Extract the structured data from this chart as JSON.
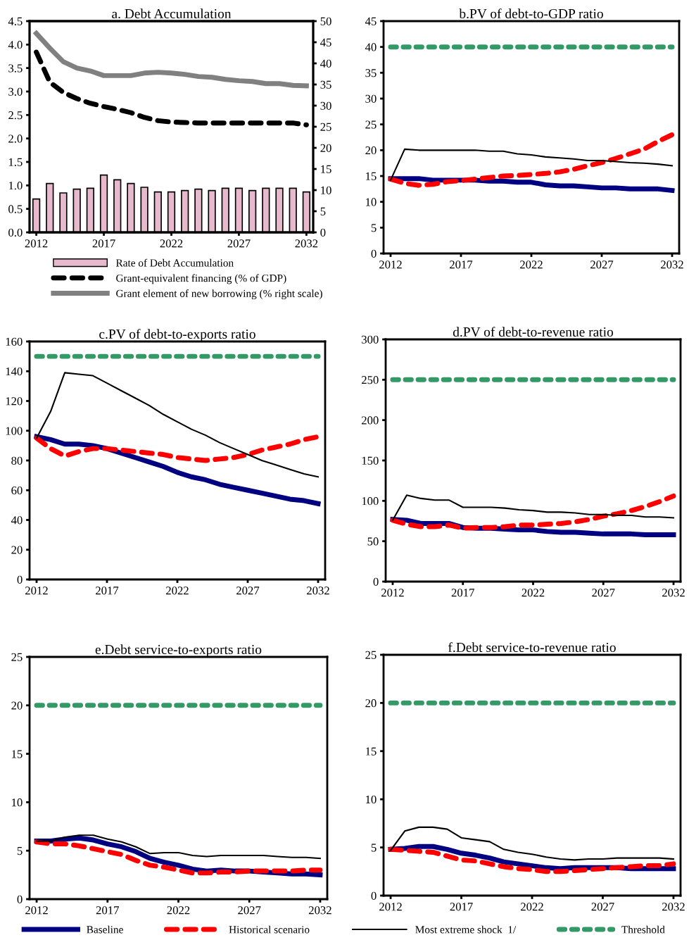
{
  "chart_data": [
    {
      "type": "bar",
      "title": "a. Debt Accumulation",
      "x": [
        2012,
        2013,
        2014,
        2015,
        2016,
        2017,
        2018,
        2019,
        2020,
        2021,
        2022,
        2023,
        2024,
        2025,
        2026,
        2027,
        2028,
        2029,
        2030,
        2031,
        2032
      ],
      "xlim": [
        2011.5,
        2032.5
      ],
      "xticks": [
        2012,
        2017,
        2022,
        2027,
        2032
      ],
      "ylim": [
        0,
        4.5
      ],
      "yticks": [
        {
          "value": 0,
          "label": "0.0"
        },
        {
          "value": 0.5,
          "label": "0.5"
        },
        {
          "value": 1,
          "label": "1.0"
        },
        {
          "value": 1.5,
          "label": "1.5"
        },
        {
          "value": 2,
          "label": "2.0"
        },
        {
          "value": 2.5,
          "label": "2.5"
        },
        {
          "value": 3,
          "label": "3.0"
        },
        {
          "value": 3.5,
          "label": "3.5"
        },
        {
          "value": 4,
          "label": "4.0"
        },
        {
          "value": 4.5,
          "label": "4.5"
        }
      ],
      "y2lim": [
        0,
        50
      ],
      "y2ticks": [
        0,
        5,
        10,
        15,
        20,
        25,
        30,
        35,
        40,
        45,
        50
      ],
      "legend": "bottom",
      "series": [
        {
          "name": "Rate of Debt Accumulation",
          "type": "bar",
          "color": "#e7b9cc",
          "values": [
            0.71,
            1.04,
            0.84,
            0.92,
            0.94,
            1.22,
            1.12,
            1.04,
            0.96,
            0.86,
            0.86,
            0.89,
            0.92,
            0.89,
            0.94,
            0.94,
            0.89,
            0.94,
            0.94,
            0.94,
            0.86
          ]
        },
        {
          "name": "Grant-equivalent financing (% of GDP)",
          "type": "line",
          "line_style": "dashed",
          "color": "#000000",
          "values": [
            3.84,
            3.2,
            2.98,
            2.85,
            2.75,
            2.68,
            2.62,
            2.55,
            2.45,
            2.38,
            2.35,
            2.34,
            2.33,
            2.33,
            2.33,
            2.33,
            2.33,
            2.33,
            2.33,
            2.33,
            2.29
          ]
        },
        {
          "name": "Grant element of new borrowing (% right scale)",
          "type": "line",
          "axis": "y2",
          "color": "#808080",
          "values": [
            47.1,
            43.6,
            40.4,
            38.9,
            38.2,
            37.1,
            37.1,
            37.1,
            37.7,
            37.9,
            37.7,
            37.4,
            36.9,
            36.7,
            36.2,
            35.9,
            35.7,
            35.2,
            35.2,
            34.8,
            34.7
          ]
        }
      ]
    },
    {
      "type": "line",
      "title": "b.PV of debt-to-GDP ratio",
      "x": [
        2012,
        2013,
        2014,
        2015,
        2016,
        2017,
        2018,
        2019,
        2020,
        2021,
        2022,
        2023,
        2024,
        2025,
        2026,
        2027,
        2028,
        2029,
        2030,
        2031,
        2032
      ],
      "xlim": [
        2011.5,
        2032.5
      ],
      "xticks": [
        2012,
        2017,
        2022,
        2027,
        2032
      ],
      "ylim": [
        0,
        45
      ],
      "yticks": [
        0,
        5,
        10,
        15,
        20,
        25,
        30,
        35,
        40,
        45
      ],
      "series": [
        {
          "color": "#000080",
          "values": [
            14.5,
            14.5,
            14.5,
            14.2,
            14.2,
            14.2,
            14.2,
            14.0,
            14.0,
            13.8,
            13.8,
            13.3,
            13.1,
            13.1,
            12.9,
            12.7,
            12.7,
            12.5,
            12.5,
            12.5,
            12.2
          ]
        },
        {
          "color": "#ff0000",
          "line_style": "dashed",
          "values": [
            14.4,
            13.6,
            13.2,
            13.4,
            13.9,
            14.1,
            14.4,
            14.7,
            15.0,
            15.1,
            15.3,
            15.5,
            15.8,
            16.3,
            17.0,
            17.6,
            18.4,
            19.3,
            20.2,
            21.7,
            23.0
          ]
        },
        {
          "color": "#000000",
          "values": [
            14.2,
            20.2,
            20.0,
            20.0,
            20.0,
            20.0,
            20.0,
            19.8,
            19.8,
            19.3,
            19.1,
            18.7,
            18.5,
            18.3,
            18.0,
            18.0,
            17.8,
            17.6,
            17.5,
            17.3,
            17.0
          ]
        },
        {
          "color": "#339966",
          "line_style": "dotted",
          "values": [
            40,
            40,
            40,
            40,
            40,
            40,
            40,
            40,
            40,
            40,
            40,
            40,
            40,
            40,
            40,
            40,
            40,
            40,
            40,
            40,
            40
          ]
        }
      ]
    },
    {
      "type": "line",
      "title": "c.PV of debt-to-exports ratio",
      "x": [
        2012,
        2013,
        2014,
        2015,
        2016,
        2017,
        2018,
        2019,
        2020,
        2021,
        2022,
        2023,
        2024,
        2025,
        2026,
        2027,
        2028,
        2029,
        2030,
        2031,
        2032
      ],
      "xlim": [
        2011.5,
        2032.5
      ],
      "xticks": [
        2012,
        2017,
        2022,
        2027,
        2032
      ],
      "ylim": [
        0,
        160
      ],
      "yticks": [
        0,
        20,
        40,
        60,
        80,
        100,
        120,
        140,
        160
      ],
      "series": [
        {
          "color": "#000080",
          "values": [
            96,
            94,
            91,
            91,
            90,
            88,
            85,
            82,
            79,
            76,
            72,
            69,
            67,
            64,
            62,
            60,
            58,
            56,
            54,
            53,
            51
          ]
        },
        {
          "color": "#ff0000",
          "line_style": "dashed",
          "values": [
            95,
            88,
            83,
            86,
            88,
            88,
            87,
            86,
            85,
            84,
            82,
            81,
            80,
            81,
            82,
            84,
            87,
            89,
            91,
            94,
            96
          ]
        },
        {
          "color": "#000000",
          "values": [
            95,
            113,
            139,
            138,
            137,
            132,
            127,
            122,
            117,
            111,
            106,
            101,
            97,
            92,
            88,
            84,
            80,
            77,
            74,
            71,
            69
          ]
        },
        {
          "color": "#339966",
          "line_style": "dotted",
          "values": [
            150,
            150,
            150,
            150,
            150,
            150,
            150,
            150,
            150,
            150,
            150,
            150,
            150,
            150,
            150,
            150,
            150,
            150,
            150,
            150,
            150
          ]
        }
      ]
    },
    {
      "type": "line",
      "title": "d.PV of debt-to-revenue ratio",
      "x": [
        2012,
        2013,
        2014,
        2015,
        2016,
        2017,
        2018,
        2019,
        2020,
        2021,
        2022,
        2023,
        2024,
        2025,
        2026,
        2027,
        2028,
        2029,
        2030,
        2031,
        2032
      ],
      "xlim": [
        2011.5,
        2032.5
      ],
      "xticks": [
        2012,
        2017,
        2022,
        2027,
        2032
      ],
      "ylim": [
        0,
        300
      ],
      "yticks": [
        0,
        50,
        100,
        150,
        200,
        250,
        300
      ],
      "series": [
        {
          "color": "#000080",
          "values": [
            77,
            76,
            72,
            72,
            72,
            67,
            66,
            66,
            65,
            64,
            64,
            62,
            61,
            61,
            60,
            59,
            59,
            59,
            58,
            58,
            58
          ]
        },
        {
          "color": "#ff0000",
          "line_style": "dashed",
          "values": [
            76,
            71,
            68,
            68,
            70,
            66,
            67,
            67,
            68,
            70,
            70,
            71,
            72,
            74,
            77,
            81,
            84,
            88,
            93,
            99,
            106
          ]
        },
        {
          "color": "#000000",
          "values": [
            76,
            107,
            103,
            101,
            101,
            92,
            92,
            92,
            91,
            89,
            88,
            86,
            86,
            85,
            83,
            83,
            82,
            82,
            80,
            80,
            79
          ]
        },
        {
          "color": "#339966",
          "line_style": "dotted",
          "values": [
            250,
            250,
            250,
            250,
            250,
            250,
            250,
            250,
            250,
            250,
            250,
            250,
            250,
            250,
            250,
            250,
            250,
            250,
            250,
            250,
            250
          ]
        }
      ]
    },
    {
      "type": "line",
      "title": "e.Debt service-to-exports ratio",
      "x": [
        2012,
        2013,
        2014,
        2015,
        2016,
        2017,
        2018,
        2019,
        2020,
        2021,
        2022,
        2023,
        2024,
        2025,
        2026,
        2027,
        2028,
        2029,
        2030,
        2031,
        2032
      ],
      "xlim": [
        2011.5,
        2032.5
      ],
      "xticks": [
        2012,
        2017,
        2022,
        2027,
        2032
      ],
      "ylim": [
        0,
        25
      ],
      "yticks": [
        0,
        5,
        10,
        15,
        20,
        25
      ],
      "series": [
        {
          "color": "#000080",
          "values": [
            6.0,
            6.0,
            6.2,
            6.3,
            6.1,
            5.7,
            5.4,
            4.9,
            4.2,
            3.8,
            3.5,
            3.1,
            2.9,
            3.0,
            2.9,
            2.9,
            2.8,
            2.7,
            2.6,
            2.6,
            2.5
          ]
        },
        {
          "color": "#ff0000",
          "line_style": "dashed",
          "values": [
            5.9,
            5.7,
            5.7,
            5.5,
            5.2,
            4.9,
            4.6,
            4.0,
            3.5,
            3.3,
            3.0,
            2.7,
            2.7,
            2.8,
            2.8,
            2.9,
            2.9,
            2.9,
            2.9,
            3.0,
            3.0
          ]
        },
        {
          "color": "#000000",
          "values": [
            6.0,
            6.0,
            6.4,
            6.6,
            6.6,
            6.2,
            5.9,
            5.4,
            4.7,
            4.8,
            4.8,
            4.5,
            4.4,
            4.5,
            4.5,
            4.5,
            4.5,
            4.4,
            4.3,
            4.3,
            4.2
          ]
        },
        {
          "color": "#339966",
          "line_style": "dotted",
          "values": [
            20,
            20,
            20,
            20,
            20,
            20,
            20,
            20,
            20,
            20,
            20,
            20,
            20,
            20,
            20,
            20,
            20,
            20,
            20,
            20,
            20
          ]
        }
      ]
    },
    {
      "type": "line",
      "title": "f.Debt service-to-revenue ratio",
      "x": [
        2012,
        2013,
        2014,
        2015,
        2016,
        2017,
        2018,
        2019,
        2020,
        2021,
        2022,
        2023,
        2024,
        2025,
        2026,
        2027,
        2028,
        2029,
        2030,
        2031,
        2032
      ],
      "xlim": [
        2011.5,
        2032.5
      ],
      "xticks": [
        2012,
        2017,
        2022,
        2027,
        2032
      ],
      "ylim": [
        0,
        25
      ],
      "yticks": [
        0,
        5,
        10,
        15,
        20,
        25
      ],
      "legend": "bottom",
      "series": [
        {
          "name": "Baseline",
          "color": "#000080",
          "values": [
            4.8,
            4.9,
            5.1,
            5.1,
            4.8,
            4.4,
            4.2,
            3.9,
            3.5,
            3.3,
            3.1,
            2.9,
            2.8,
            2.9,
            2.9,
            2.9,
            2.9,
            2.8,
            2.8,
            2.8,
            2.8
          ]
        },
        {
          "name": "Historical scenario",
          "color": "#ff0000",
          "line_style": "dashed",
          "values": [
            4.8,
            4.7,
            4.6,
            4.5,
            4.1,
            3.7,
            3.6,
            3.3,
            3.0,
            2.8,
            2.7,
            2.5,
            2.5,
            2.6,
            2.7,
            2.8,
            2.9,
            3.0,
            3.1,
            3.1,
            3.3
          ]
        },
        {
          "name": "Most extreme shock  1/",
          "color": "#000000",
          "values": [
            4.7,
            6.7,
            7.1,
            7.1,
            6.9,
            6.0,
            5.8,
            5.6,
            4.8,
            4.5,
            4.3,
            4.0,
            3.8,
            3.7,
            3.8,
            3.8,
            3.9,
            3.9,
            3.9,
            3.9,
            3.8
          ]
        },
        {
          "name": "Threshold",
          "color": "#339966",
          "line_style": "dotted",
          "values": [
            20,
            20,
            20,
            20,
            20,
            20,
            20,
            20,
            20,
            20,
            20,
            20,
            20,
            20,
            20,
            20,
            20,
            20,
            20,
            20,
            20
          ]
        }
      ]
    }
  ]
}
